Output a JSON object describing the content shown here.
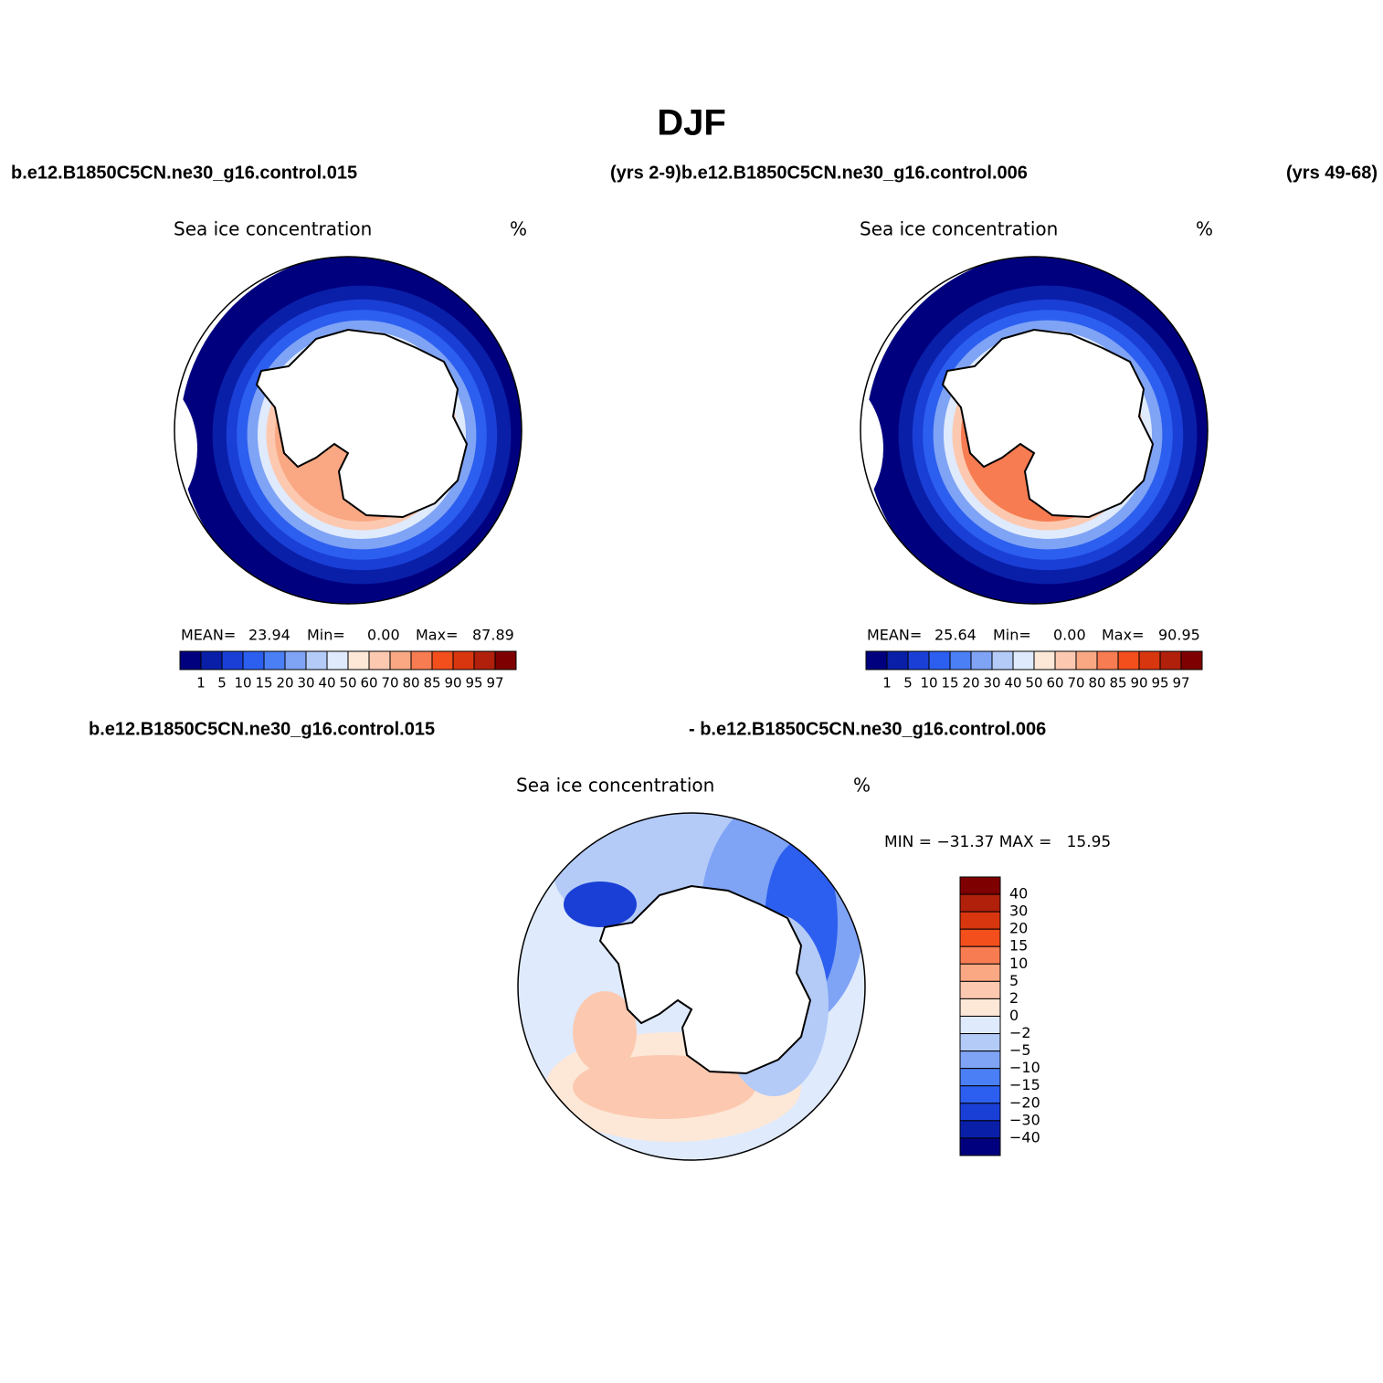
{
  "title": "DJF",
  "header": {
    "left": "b.e12.B1850C5CN.ne30_g16.control.015",
    "middle": "(yrs 2-9)b.e12.B1850C5CN.ne30_g16.control.006",
    "right": "(yrs 49-68)"
  },
  "panels": [
    {
      "title": "Sea ice concentration",
      "units": "%",
      "stats": [
        "MEAN=",
        "23.94",
        "Min=",
        "0.00",
        "Max=",
        "87.89"
      ]
    },
    {
      "title": "Sea ice concentration",
      "units": "%",
      "stats": [
        "MEAN=",
        "25.64",
        "Min=",
        "0.00",
        "Max=",
        "90.95"
      ]
    }
  ],
  "colorbar": {
    "colors": [
      "#00007f",
      "#0a1fa8",
      "#1a3fd6",
      "#2c5fef",
      "#4b7ff5",
      "#7fa3f5",
      "#b4cbf8",
      "#dfeafc",
      "#fde8d8",
      "#fcc9b0",
      "#f9a883",
      "#f77c52",
      "#f24f1c",
      "#d8360f",
      "#b0200b",
      "#7f0000"
    ],
    "labels": [
      "1",
      "5",
      "10",
      "15",
      "20",
      "30",
      "40",
      "50",
      "60",
      "70",
      "80",
      "85",
      "90",
      "95",
      "97"
    ]
  },
  "difference": {
    "header_left": "b.e12.B1850C5CN.ne30_g16.control.015",
    "header_right": "- b.e12.B1850C5CN.ne30_g16.control.006",
    "title": "Sea ice concentration",
    "units": "%",
    "stats": "MIN = −31.37 MAX =   15.95",
    "colorbar": {
      "colors": [
        "#7f0000",
        "#b0200b",
        "#d8360f",
        "#f24f1c",
        "#f77c52",
        "#f9a883",
        "#fcc9b0",
        "#fde8d8",
        "#dfeafc",
        "#b4cbf8",
        "#7fa3f5",
        "#4b7ff5",
        "#2c5fef",
        "#1a3fd6",
        "#0a1fa8",
        "#00007f"
      ],
      "labels": [
        "40",
        "30",
        "20",
        "15",
        "10",
        "5",
        "2",
        "0",
        "−2",
        "−5",
        "−10",
        "−15",
        "−20",
        "−30",
        "−40"
      ]
    }
  }
}
